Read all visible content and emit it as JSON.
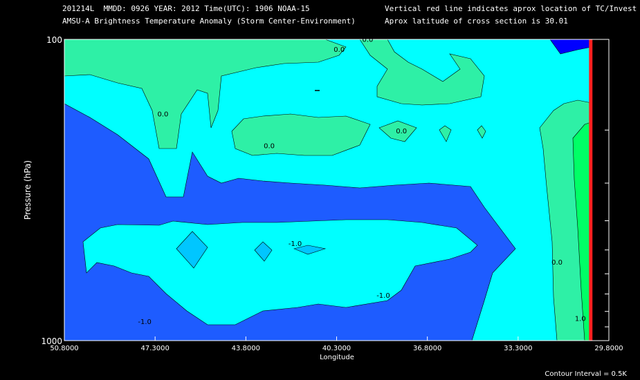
{
  "header": {
    "line1_left": "201214L  MMDD: 0926 YEAR: 2012 Time(UTC): 1906 NOAA-15",
    "line2_left": "AMSU-A Brightness Temperature Anomaly (Storm Center-Environment)",
    "line1_right": "Vertical red line indicates aprox location of TC/Invest",
    "line2_right": "Aprox latitude of cross section is 30.01"
  },
  "footer": {
    "contour_interval": "Contour Interval = 0.5K"
  },
  "colors": {
    "background": "#000000",
    "level_-1.5": "#0000ff",
    "level_-1.0": "#1e5cff",
    "level_-0.5": "#00ffff",
    "level_0.0": "#2ef0a6",
    "level_0.5": "#00ff66",
    "level_-1.5_pocket": "#00c6ff",
    "tc_line": "#ff2020"
  },
  "chart_data": {
    "type": "contour",
    "title": "AMSU-A Brightness Temperature Anomaly (Storm Center-Environment)",
    "xlabel": "Longitude",
    "ylabel": "Pressure (hPa)",
    "x_ticks": [
      "50.8000",
      "47.3000",
      "43.8000",
      "40.3000",
      "36.8000",
      "33.3000",
      "29.8000"
    ],
    "x_tick_values": [
      50.8,
      47.3,
      43.8,
      40.3,
      36.8,
      33.3,
      29.8
    ],
    "xlim": [
      50.8,
      29.8
    ],
    "y_ticks": [
      "100",
      "1000"
    ],
    "ylim": [
      1000,
      100
    ],
    "y_scale": "log",
    "contour_interval_K": 0.5,
    "contour_labels": [
      {
        "text": "0.0",
        "lon": 40.2,
        "p": 110
      },
      {
        "text": "0.0",
        "lon": 39.1,
        "p": 102
      },
      {
        "text": "0.0",
        "lon": 47.0,
        "p": 180
      },
      {
        "text": "0.0",
        "lon": 42.9,
        "p": 230
      },
      {
        "text": "0.0",
        "lon": 37.8,
        "p": 205
      },
      {
        "text": "-1.0",
        "lon": 41.9,
        "p": 485
      },
      {
        "text": "-1.0",
        "lon": 38.5,
        "p": 720
      },
      {
        "text": "-1.0",
        "lon": 47.7,
        "p": 880
      },
      {
        "text": "0.0",
        "lon": 31.8,
        "p": 560
      },
      {
        "text": "1.0",
        "lon": 30.9,
        "p": 860
      }
    ],
    "tc_longitude": 30.5
  }
}
